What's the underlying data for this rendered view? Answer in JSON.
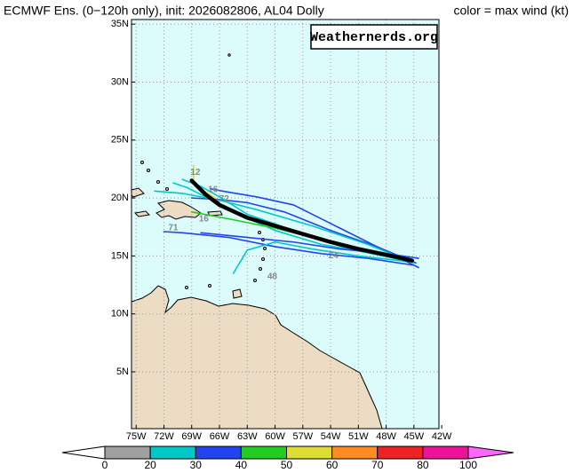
{
  "map": {
    "title": "ECMWF Ens. (0−120h only), init: 2026082806, AL04 Dolly",
    "legend_title": "color = max wind (kt)",
    "credit": "Weathernerds.org",
    "lonlim": [
      -75.5,
      -42.3
    ],
    "latlim": [
      0.1,
      35.4
    ],
    "lonticks": [
      {
        "value": -75,
        "label": "75W"
      },
      {
        "value": -72,
        "label": "72W"
      },
      {
        "value": -69,
        "label": "69W"
      },
      {
        "value": -66,
        "label": "66W"
      },
      {
        "value": -63,
        "label": "63W"
      },
      {
        "value": -60,
        "label": "60W"
      },
      {
        "value": -57,
        "label": "57W"
      },
      {
        "value": -54,
        "label": "54W"
      },
      {
        "value": -51,
        "label": "51W"
      },
      {
        "value": -48,
        "label": "48W"
      },
      {
        "value": -45,
        "label": "45W"
      },
      {
        "value": -42,
        "label": "42W"
      }
    ],
    "latticks": [
      {
        "value": 5,
        "label": "5N"
      },
      {
        "value": 10,
        "label": "10N"
      },
      {
        "value": 15,
        "label": "15N"
      },
      {
        "value": 20,
        "label": "20N"
      },
      {
        "value": 25,
        "label": "25N"
      },
      {
        "value": 30,
        "label": "30N"
      },
      {
        "value": 35,
        "label": "35N"
      }
    ],
    "grid": true,
    "tracks": [
      {
        "color": "#00c8c8",
        "lon": [
          -45.5,
          -50,
          -55,
          -60,
          -64,
          -67,
          -69.5,
          -71
        ],
        "lat": [
          14.8,
          15.3,
          16.0,
          17.2,
          18.6,
          19.9,
          20.9,
          21.3
        ]
      },
      {
        "color": "#2244ee",
        "lon": [
          -44.8,
          -49,
          -54,
          -59,
          -63,
          -66.5,
          -69
        ],
        "lat": [
          14.4,
          15.8,
          17.2,
          18.8,
          19.6,
          19.9,
          20.0
        ]
      },
      {
        "color": "#2244ee",
        "lon": [
          -45,
          -50,
          -55,
          -60,
          -65,
          -70,
          -72
        ],
        "lat": [
          14.2,
          14.8,
          15.2,
          15.8,
          16.6,
          17.0,
          17.1
        ]
      },
      {
        "color": "#00c8c8",
        "lon": [
          -45.5,
          -51,
          -56,
          -60,
          -63,
          -64.5
        ],
        "lat": [
          14.5,
          15.0,
          15.6,
          16.2,
          15.5,
          13.5
        ]
      },
      {
        "color": "#22cc22",
        "lon": [
          -45.2,
          -50,
          -55,
          -60,
          -65,
          -69
        ],
        "lat": [
          14.6,
          15.4,
          16.4,
          17.4,
          18.2,
          18.8
        ]
      },
      {
        "color": "#00c8c8",
        "lon": [
          -46,
          -52,
          -58,
          -63,
          -66,
          -68,
          -70
        ],
        "lat": [
          14.6,
          15.6,
          17.2,
          18.6,
          20.1,
          21.0,
          21.6
        ]
      },
      {
        "color": "#2244ee",
        "lon": [
          -44.5,
          -49,
          -54,
          -58,
          -62,
          -65,
          -67
        ],
        "lat": [
          14.0,
          15.8,
          17.8,
          19.4,
          20.1,
          20.5,
          20.8
        ]
      },
      {
        "color": "#00c8c8",
        "lon": [
          -45,
          -50,
          -56,
          -62,
          -66,
          -70,
          -73
        ],
        "lat": [
          14.4,
          16.0,
          17.6,
          19.0,
          19.8,
          20.4,
          20.6
        ]
      },
      {
        "color": "#ee3333",
        "lon": [
          -66,
          -67.5,
          -69
        ],
        "lat": [
          19.6,
          20.5,
          21.6
        ]
      },
      {
        "color": "#dddd22",
        "lon": [
          -66.5,
          -68.8,
          -68.8
        ],
        "lat": [
          20.0,
          21.2,
          22.8
        ]
      },
      {
        "color": "#2244ee",
        "lon": [
          -44.5,
          -48,
          -53,
          -58,
          -63,
          -68
        ],
        "lat": [
          14.8,
          15.2,
          15.6,
          16.2,
          16.6,
          17.0
        ]
      }
    ],
    "mean_track": {
      "color": "#000000",
      "lon": [
        -45.2,
        -48,
        -51,
        -54,
        -57,
        -60,
        -63,
        -66,
        -67.5,
        -69
      ],
      "lat": [
        14.6,
        15.1,
        15.6,
        16.2,
        16.9,
        17.6,
        18.3,
        19.4,
        20.3,
        21.5
      ]
    },
    "hour_labels": [
      {
        "text": "12",
        "lon": -68.6,
        "lat": 22.2
      },
      {
        "text": "16",
        "lon": -66.7,
        "lat": 20.7
      },
      {
        "text": "72",
        "lon": -65.5,
        "lat": 19.9
      },
      {
        "text": "16",
        "lon": -67.7,
        "lat": 18.2
      },
      {
        "text": "71",
        "lon": -71.0,
        "lat": 17.4
      },
      {
        "text": "24",
        "lon": -53.7,
        "lat": 15.0
      },
      {
        "text": "48",
        "lon": -60.3,
        "lat": 13.2
      }
    ],
    "colorbar": {
      "bounds": [
        0,
        20,
        30,
        40,
        50,
        60,
        70,
        80,
        100
      ],
      "colors": [
        "#a0a0a0",
        "#00c8c8",
        "#2244ee",
        "#22cc22",
        "#dddd33",
        "#ff8c22",
        "#ee2222",
        "#ee1199"
      ],
      "under_color": "#ffffff",
      "over_color": "#ff66ff"
    }
  }
}
